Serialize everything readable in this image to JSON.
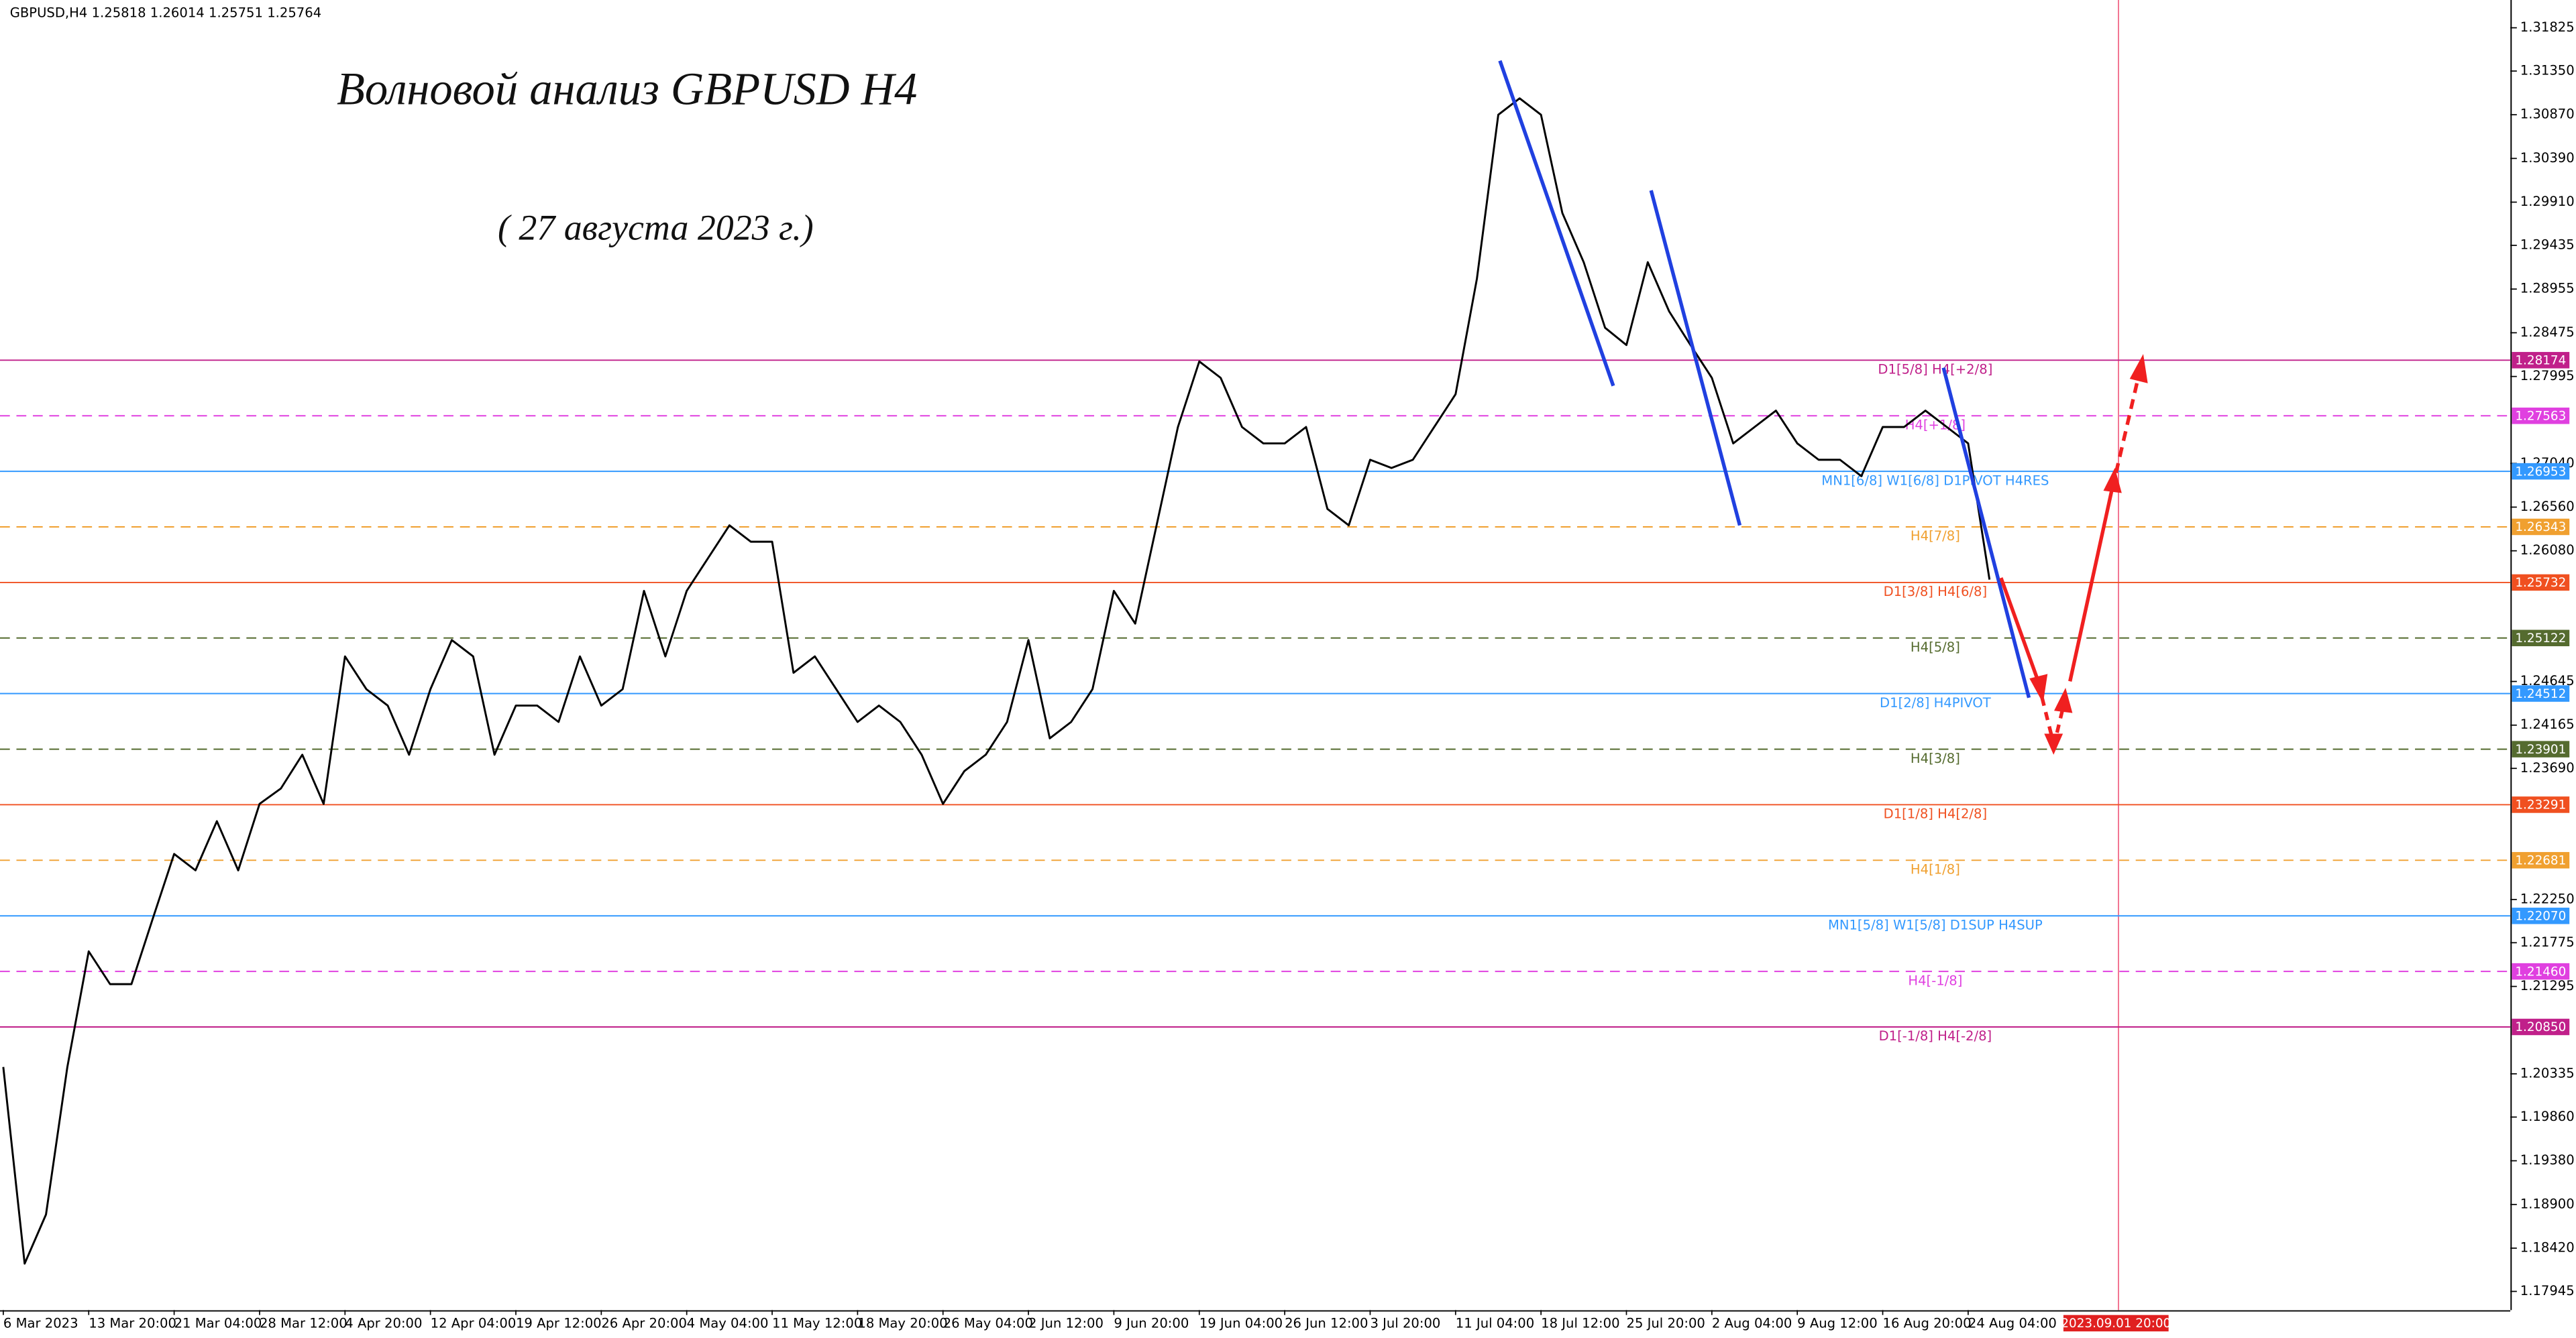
{
  "chart_data": {
    "type": "line",
    "title": "Волновой анализ GBPUSD H4",
    "subtitle": "( 27 августа 2023 г.)",
    "symbol": "GBPUSD,H4",
    "ohlc": [
      1.25818,
      1.26014,
      1.25751,
      1.25764
    ],
    "cursor_time": "2023.09.01 20:00",
    "ylim": [
      1.1774,
      1.3213
    ],
    "yticks": [
      1.31825,
      {
        "value": 1.3135,
        "label": "1.31350"
      },
      {
        "value": 1.3087,
        "label": "1.30870"
      },
      {
        "value": 1.3039,
        "label": "1.30390"
      },
      {
        "value": 1.2991,
        "label": "1.29910"
      },
      1.29435,
      1.28955,
      1.28475,
      1.27995,
      {
        "value": 1.2704,
        "label": "1.27040"
      },
      {
        "value": 1.2656,
        "label": "1.26560"
      },
      {
        "value": 1.2608,
        "label": "1.26080"
      },
      1.24645,
      1.24165,
      {
        "value": 1.2369,
        "label": "1.23690"
      },
      {
        "value": 1.2225,
        "label": "1.22250"
      },
      1.21775,
      1.21295,
      1.20335,
      {
        "value": 1.1986,
        "label": "1.19860"
      },
      {
        "value": 1.1938,
        "label": "1.19380"
      },
      {
        "value": 1.189,
        "label": "1.18900"
      },
      {
        "value": 1.1842,
        "label": "1.18420"
      },
      1.17945
    ],
    "categories": [
      "6 Mar 2023",
      null,
      null,
      null,
      "13 Mar 20:00",
      null,
      null,
      null,
      "21 Mar 04:00",
      null,
      null,
      null,
      "28 Mar 12:00",
      null,
      null,
      null,
      "4 Apr 20:00",
      null,
      null,
      null,
      "12 Apr 04:00",
      null,
      null,
      null,
      "19 Apr 12:00",
      null,
      null,
      null,
      "26 Apr 20:00",
      null,
      null,
      null,
      "4 May 04:00",
      null,
      null,
      null,
      "11 May 12:00",
      null,
      null,
      null,
      "18 May 20:00",
      null,
      null,
      null,
      "26 May 04:00",
      null,
      null,
      null,
      "2 Jun 12:00",
      null,
      null,
      null,
      "9 Jun 20:00",
      null,
      null,
      null,
      "19 Jun 04:00",
      null,
      null,
      null,
      "26 Jun 12:00",
      null,
      null,
      null,
      "3 Jul 20:00",
      null,
      null,
      null,
      "11 Jul 04:00",
      null,
      null,
      null,
      "18 Jul 12:00",
      null,
      null,
      null,
      "25 Jul 20:00",
      null,
      null,
      null,
      "2 Aug 04:00",
      null,
      null,
      null,
      "9 Aug 12:00",
      null,
      null,
      null,
      "16 Aug 20:00",
      null,
      null,
      null,
      "24 Aug 04:00",
      null
    ],
    "series": [
      {
        "color": "#000000",
        "values": [
          1.2041,
          1.1825,
          1.1879,
          1.2041,
          1.2168,
          1.2132,
          1.2132,
          1.2204,
          1.2275,
          1.2257,
          1.2311,
          1.2257,
          1.233,
          1.2347,
          1.2384,
          1.233,
          1.2492,
          1.2456,
          1.2438,
          1.2384,
          1.2456,
          1.251,
          1.2492,
          1.2384,
          1.2438,
          1.2438,
          1.242,
          1.2492,
          1.2438,
          1.2456,
          1.2564,
          1.2492,
          1.2564,
          1.26,
          1.2636,
          1.2618,
          1.2618,
          1.2474,
          1.2492,
          1.2456,
          1.242,
          1.2438,
          1.242,
          1.2384,
          1.233,
          1.2366,
          1.2384,
          1.242,
          1.251,
          1.2402,
          1.242,
          1.2456,
          1.2564,
          1.2528,
          1.2636,
          1.2744,
          1.2816,
          1.2798,
          1.2744,
          1.2726,
          1.2726,
          1.2744,
          1.2654,
          1.2636,
          1.2708,
          1.2699,
          1.2708,
          1.2744,
          1.278,
          1.2907,
          1.3087,
          1.3105,
          1.3087,
          1.2979,
          1.2925,
          1.2853,
          1.2834,
          1.2925,
          1.2871,
          1.2834,
          1.2798,
          1.2726,
          1.2744,
          1.2762,
          1.2726,
          1.2708,
          1.2708,
          1.269,
          1.2744,
          1.2744,
          1.2762,
          1.2744,
          1.2726,
          1.25764
        ]
      }
    ],
    "levels": [
      {
        "name": "D1[5/8] H4[+2/8]",
        "value": 1.28174,
        "color": "#c0208a",
        "dash": false
      },
      {
        "name": "H4[+1/8]",
        "value": 1.27563,
        "color": "#e040e0",
        "dash": true
      },
      {
        "name": "MN1[6/8] W1[6/8] D1PIVOT H4RES",
        "value": 1.26953,
        "color": "#3399ff",
        "dash": false
      },
      {
        "name": "H4[7/8]",
        "value": 1.26343,
        "color": "#f0a030",
        "dash": true
      },
      {
        "name": "D1[3/8] H4[6/8]",
        "value": 1.25732,
        "color": "#f05020",
        "dash": false
      },
      {
        "name": "H4[5/8]",
        "value": 1.25122,
        "color": "#556b2f",
        "dash": true
      },
      {
        "name": "D1[2/8] H4PIVOT",
        "value": 1.24512,
        "color": "#3399ff",
        "dash": false
      },
      {
        "name": "H4[3/8]",
        "value": 1.23901,
        "color": "#556b2f",
        "dash": true
      },
      {
        "name": "D1[1/8] H4[2/8]",
        "value": 1.23291,
        "color": "#f05020",
        "dash": false
      },
      {
        "name": "H4[1/8]",
        "value": 1.22681,
        "color": "#f0a030",
        "dash": true
      },
      {
        "name": "MN1[5/8] W1[5/8] D1SUP H4SUP",
        "value": 1.2207,
        "value_label": "1.22070",
        "color": "#3399ff",
        "dash": false
      },
      {
        "name": "H4[-1/8]",
        "value": 1.2146,
        "value_label": "1.21460",
        "color": "#e040e0",
        "dash": true
      },
      {
        "name": "D1[-1/8] H4[-2/8]",
        "value": 1.2085,
        "value_label": "1.20850",
        "color": "#c0208a",
        "dash": false
      }
    ]
  }
}
